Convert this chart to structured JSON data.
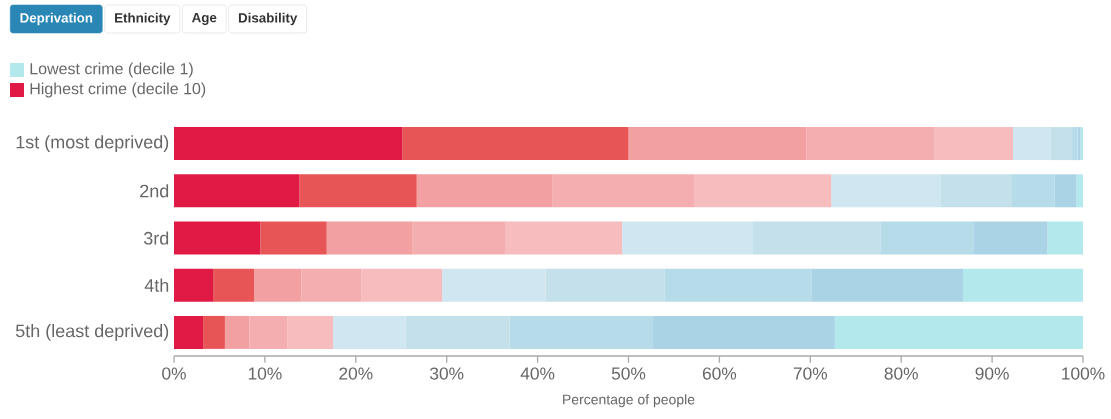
{
  "chart_data": {
    "type": "bar",
    "orientation": "horizontal",
    "stacked": true,
    "annotations": [
      "Deprivation",
      "Ethnicity",
      "Age",
      "Disability"
    ],
    "categories": [
      "1st (most deprived)",
      "2nd",
      "3rd",
      "4th",
      "5th (least deprived)"
    ],
    "xlabel": "Percentage of people",
    "xlim": [
      0,
      100
    ],
    "xticks": [
      {
        "value": 0,
        "label": "0%"
      },
      {
        "value": 10,
        "label": "10%"
      },
      {
        "value": 20,
        "label": "20%"
      },
      {
        "value": 30,
        "label": "30%"
      },
      {
        "value": 40,
        "label": "40%"
      },
      {
        "value": 50,
        "label": "50%"
      },
      {
        "value": 60,
        "label": "60%"
      },
      {
        "value": 70,
        "label": "70%"
      },
      {
        "value": 80,
        "label": "80%"
      },
      {
        "value": 90,
        "label": "90%"
      },
      {
        "value": 100,
        "label": "100%"
      }
    ],
    "legend": "top left",
    "grid": false,
    "series": [
      {
        "name": "Highest crime (decile 10)",
        "color": "#e01a45",
        "values": [
          25.1,
          13.8,
          9.5,
          4.3,
          3.2
        ]
      },
      {
        "color": "#e85557",
        "values": [
          24.9,
          12.9,
          7.3,
          4.5,
          2.4
        ]
      },
      {
        "color": "#f2a0a2",
        "values": [
          19.6,
          14.9,
          9.4,
          5.2,
          2.7
        ]
      },
      {
        "color": "#f4aeb0",
        "values": [
          14.0,
          15.6,
          10.3,
          6.6,
          4.2
        ]
      },
      {
        "color": "#f6bcbe",
        "values": [
          8.7,
          15.1,
          12.8,
          8.9,
          5.0
        ]
      },
      {
        "color": "#d0e6f0",
        "values": [
          4.1,
          12.0,
          14.4,
          11.4,
          8.0
        ]
      },
      {
        "color": "#c3e0eb",
        "values": [
          2.4,
          7.8,
          14.0,
          13.1,
          11.4
        ]
      },
      {
        "color": "#b6dcea",
        "values": [
          0.6,
          4.8,
          10.3,
          16.1,
          15.8
        ]
      },
      {
        "color": "#aad3e5",
        "values": [
          0.3,
          2.4,
          8.1,
          16.7,
          20.0
        ]
      },
      {
        "name": "Lowest crime (decile 1)",
        "color": "#b3e9ec",
        "values": [
          0.3,
          0.7,
          3.9,
          13.2,
          27.3
        ]
      }
    ]
  }
}
